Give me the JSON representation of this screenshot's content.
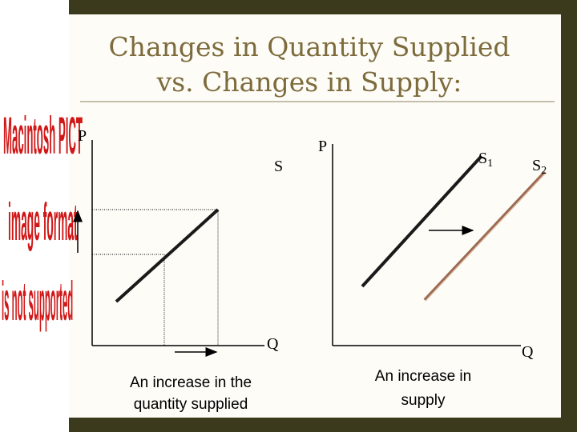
{
  "title": {
    "line1": "Changes in Quantity Supplied",
    "line2": "vs. Changes in Supply:"
  },
  "placeholder": {
    "lines": [
      "Macintosh PICT",
      "image format",
      "is not supported"
    ]
  },
  "left_graph": {
    "y_axis": "P",
    "x_axis": "Q",
    "curve": "S",
    "caption": {
      "line1": "An increase in the",
      "line2": "quantity supplied"
    }
  },
  "right_graph": {
    "y_axis": "P",
    "x_axis": "Q",
    "curve1": {
      "label": "S",
      "subscript": "1"
    },
    "curve2": {
      "label": "S",
      "subscript": "2"
    },
    "caption": {
      "line1": "An increase in",
      "line2": "supply"
    }
  }
}
